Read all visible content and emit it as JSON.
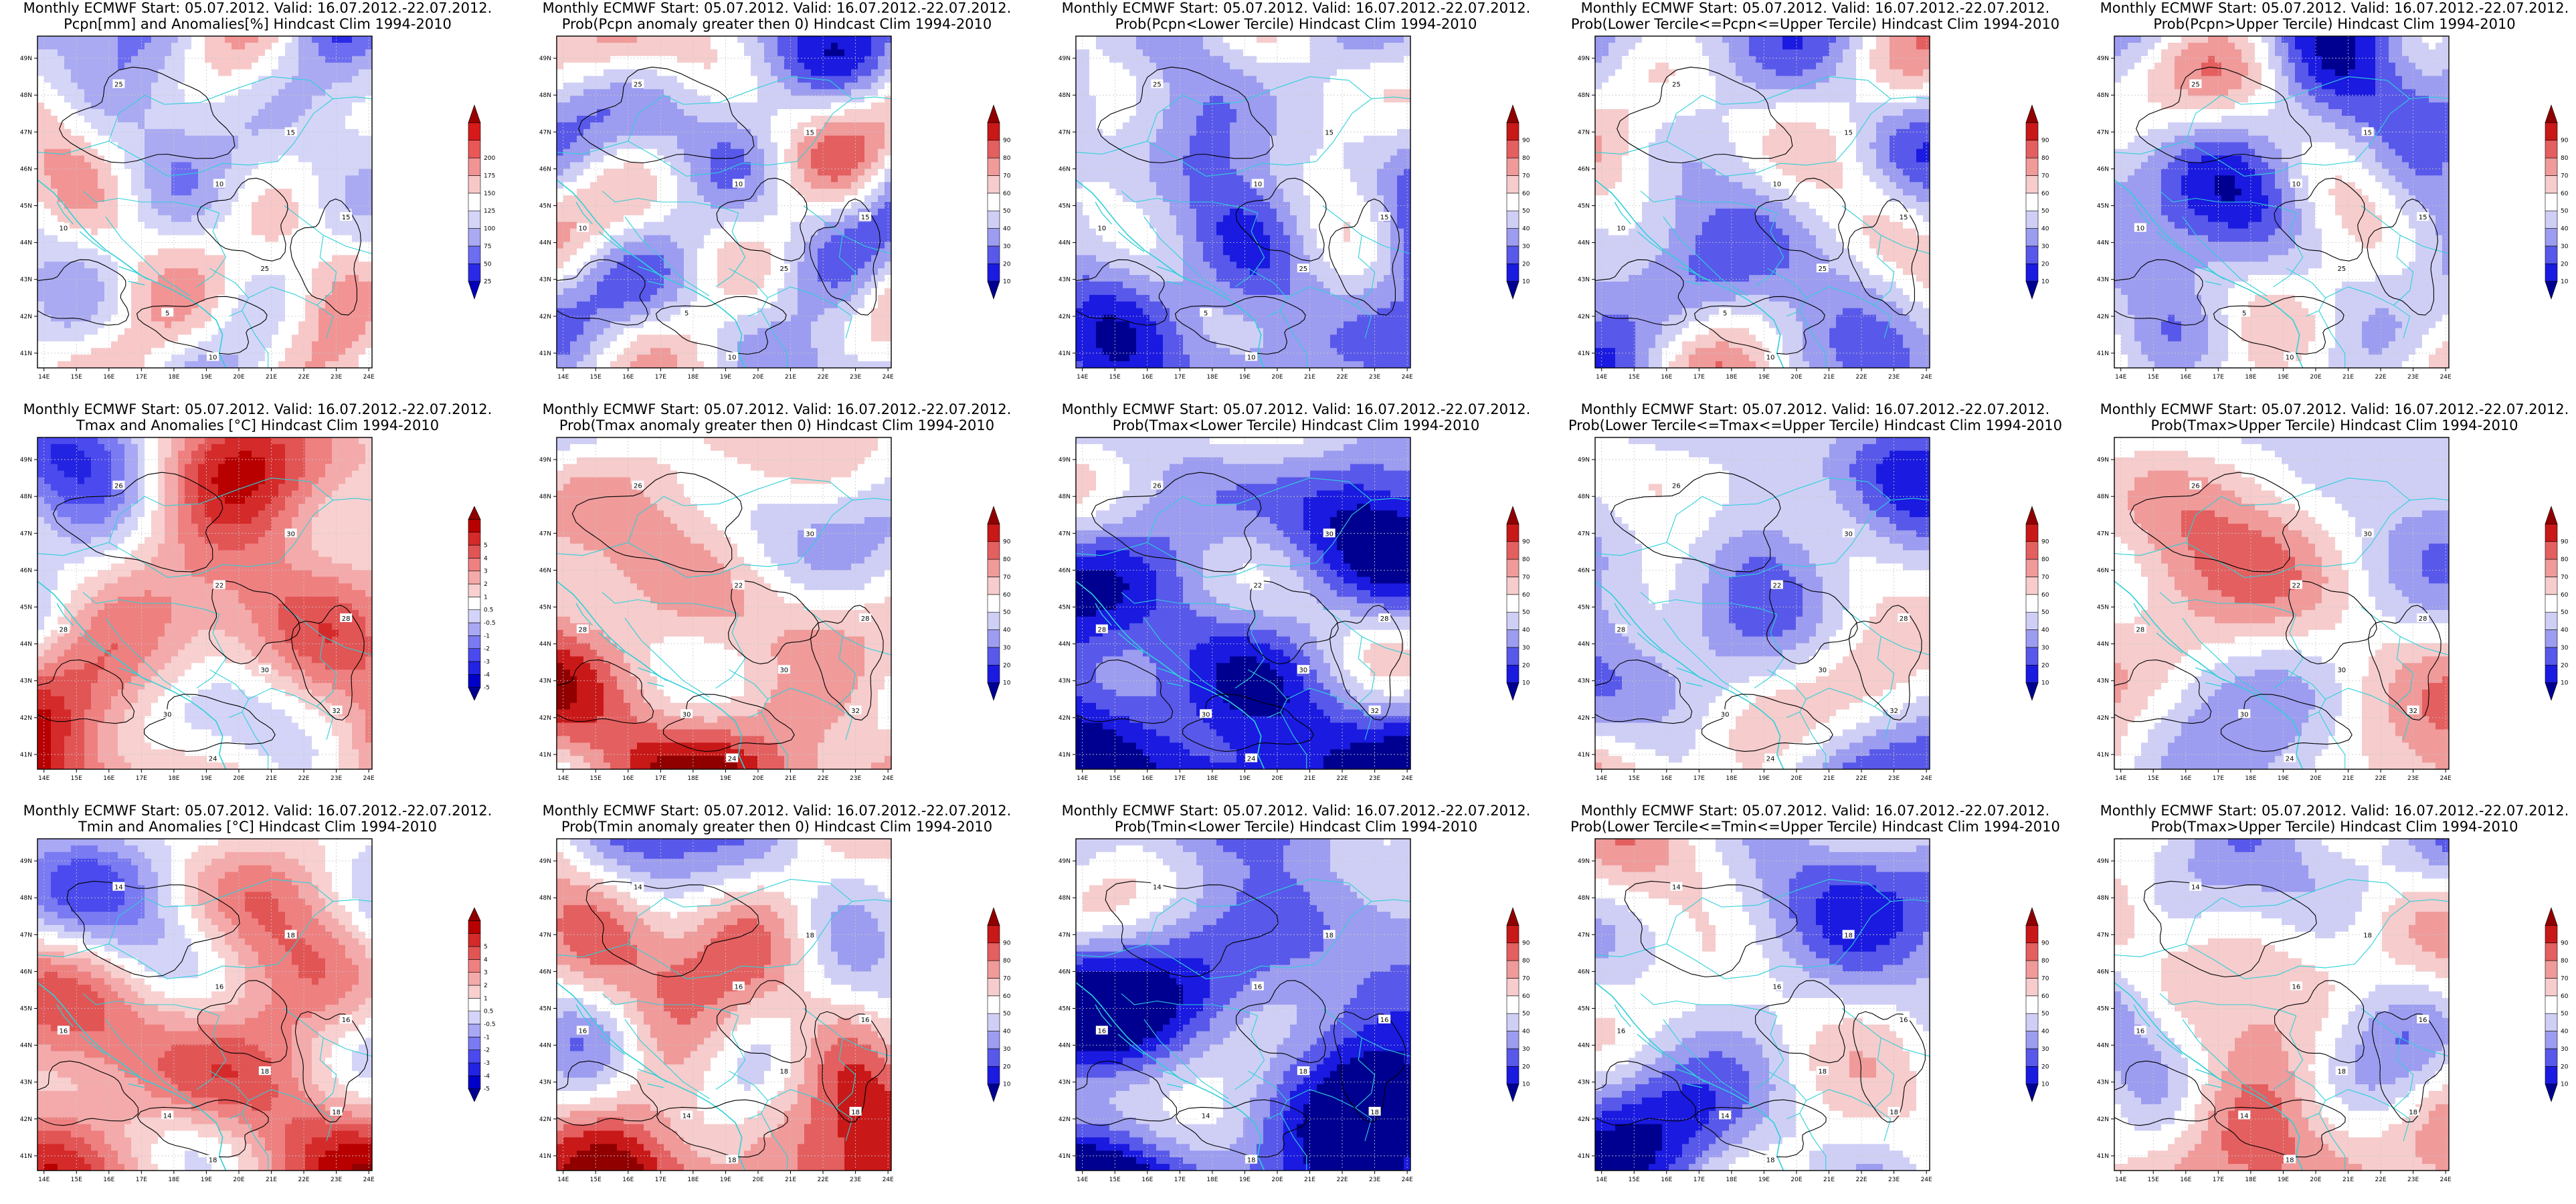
{
  "figure": {
    "rows": [
      {
        "variable": "Pcpn",
        "panels": [
          {
            "line1": "Monthly ECMWF Start: 05.07.2012. Valid: 16.07.2012.-22.07.2012.",
            "line2": "Pcpn[mm] and Anomalies[%] Hindcast Clim 1994-2010",
            "scale": "anomaly_pcpn",
            "contour_labels": [
              "25",
              "10",
              "15",
              "10",
              "25",
              "15",
              "5",
              "10"
            ]
          },
          {
            "line1": "Monthly ECMWF Start: 05.07.2012. Valid: 16.07.2012.-22.07.2012.",
            "line2": "Prob(Pcpn anomaly greater then 0) Hindcast Clim 1994-2010",
            "scale": "probability",
            "contour_labels": [
              "25",
              "10",
              "15",
              "10",
              "25",
              "15",
              "5",
              "10"
            ]
          },
          {
            "line1": "Monthly ECMWF Start: 05.07.2012. Valid: 16.07.2012.-22.07.2012.",
            "line2": "Prob(Pcpn<Lower Tercile) Hindcast Clim 1994-2010",
            "scale": "probability",
            "contour_labels": [
              "25",
              "10",
              "15",
              "10",
              "25",
              "15",
              "5",
              "10"
            ]
          },
          {
            "line1": "Monthly ECMWF Start: 05.07.2012. Valid: 16.07.2012.-22.07.2012.",
            "line2": "Prob(Lower Tercile<=Pcpn<=Upper Tercile) Hindcast Clim 1994-2010",
            "scale": "probability",
            "contour_labels": [
              "25",
              "10",
              "15",
              "10",
              "25",
              "15",
              "5",
              "10"
            ]
          },
          {
            "line1": "Monthly ECMWF Start: 05.07.2012. Valid: 16.07.2012.-22.07.2012.",
            "line2": "Prob(Pcpn>Upper Tercile) Hindcast Clim 1994-2010",
            "scale": "probability",
            "contour_labels": [
              "25",
              "10",
              "15",
              "10",
              "25",
              "15",
              "5",
              "10"
            ]
          }
        ]
      },
      {
        "variable": "Tmax",
        "panels": [
          {
            "line1": "Monthly ECMWF Start: 05.07.2012. Valid: 16.07.2012.-22.07.2012.",
            "line2": "Tmax and Anomalies [°C] Hindcast Clim 1994-2010",
            "scale": "anomaly_temp",
            "contour_labels": [
              "26",
              "22",
              "30",
              "28",
              "30",
              "28",
              "30",
              "24",
              "32"
            ]
          },
          {
            "line1": "Monthly ECMWF Start: 05.07.2012. Valid: 16.07.2012.-22.07.2012.",
            "line2": "Prob(Tmax anomaly greater then 0) Hindcast Clim 1994-2010",
            "scale": "probability",
            "contour_labels": [
              "26",
              "22",
              "30",
              "28",
              "30",
              "28",
              "30",
              "24",
              "32"
            ]
          },
          {
            "line1": "Monthly ECMWF Start: 05.07.2012. Valid: 16.07.2012.-22.07.2012.",
            "line2": "Prob(Tmax<Lower Tercile) Hindcast Clim 1994-2010",
            "scale": "probability",
            "contour_labels": [
              "26",
              "22",
              "30",
              "28",
              "30",
              "28",
              "30",
              "24",
              "32"
            ]
          },
          {
            "line1": "Monthly ECMWF Start: 05.07.2012. Valid: 16.07.2012.-22.07.2012.",
            "line2": "Prob(Lower Tercile<=Tmax<=Upper Tercile) Hindcast Clim 1994-2010",
            "scale": "probability",
            "contour_labels": [
              "26",
              "22",
              "30",
              "28",
              "30",
              "28",
              "30",
              "24",
              "32"
            ]
          },
          {
            "line1": "Monthly ECMWF Start: 05.07.2012. Valid: 16.07.2012.-22.07.2012.",
            "line2": "Prob(Tmax>Upper Tercile) Hindcast Clim 1994-2010",
            "scale": "probability",
            "contour_labels": [
              "26",
              "22",
              "30",
              "28",
              "30",
              "28",
              "30",
              "24",
              "32"
            ]
          }
        ]
      },
      {
        "variable": "Tmin",
        "panels": [
          {
            "line1": "Monthly ECMWF Start: 05.07.2012. Valid: 16.07.2012.-22.07.2012.",
            "line2": "Tmin and Anomalies [°C] Hindcast Clim 1994-2010",
            "scale": "anomaly_temp",
            "contour_labels": [
              "14",
              "16",
              "18",
              "16",
              "18",
              "16",
              "14",
              "18",
              "18"
            ]
          },
          {
            "line1": "Monthly ECMWF Start: 05.07.2012. Valid: 16.07.2012.-22.07.2012.",
            "line2": "Prob(Tmin anomaly greater then 0) Hindcast Clim 1994-2010",
            "scale": "probability",
            "contour_labels": [
              "14",
              "16",
              "18",
              "16",
              "18",
              "16",
              "14",
              "18",
              "18"
            ]
          },
          {
            "line1": "Monthly ECMWF Start: 05.07.2012. Valid: 16.07.2012.-22.07.2012.",
            "line2": "Prob(Tmin<Lower Tercile) Hindcast Clim 1994-2010",
            "scale": "probability",
            "contour_labels": [
              "14",
              "16",
              "18",
              "16",
              "18",
              "16",
              "14",
              "18",
              "18"
            ]
          },
          {
            "line1": "Monthly ECMWF Start: 05.07.2012. Valid: 16.07.2012.-22.07.2012.",
            "line2": "Prob(Lower Tercile<=Tmin<=Upper Tercile) Hindcast Clim 1994-2010",
            "scale": "probability",
            "contour_labels": [
              "14",
              "16",
              "18",
              "16",
              "18",
              "16",
              "14",
              "18",
              "18"
            ]
          },
          {
            "line1": "Monthly ECMWF Start: 05.07.2012. Valid: 16.07.2012.-22.07.2012.",
            "line2": "Prob(Tmax>Upper Tercile) Hindcast Clim 1994-2010",
            "scale": "probability",
            "contour_labels": [
              "14",
              "16",
              "18",
              "16",
              "18",
              "16",
              "14",
              "18",
              "18"
            ]
          }
        ]
      }
    ]
  },
  "axes": {
    "lat_labels": [
      "41N",
      "42N",
      "43N",
      "44N",
      "45N",
      "46N",
      "47N",
      "48N",
      "49N"
    ],
    "lon_labels": [
      "14E",
      "15E",
      "16E",
      "17E",
      "18E",
      "19E",
      "20E",
      "21E",
      "22E",
      "23E",
      "24E"
    ]
  },
  "scales": {
    "anomaly_pcpn": {
      "labels": [
        "25",
        "50",
        "75",
        "100",
        "125",
        "150",
        "175",
        "200"
      ],
      "colors": [
        "#0000b8",
        "#2a2ae6",
        "#6d6df2",
        "#aaaaf2",
        "#d5d5f8",
        "#ffffff",
        "#f8c8c8",
        "#f29494",
        "#ea5757",
        "#d61a1a",
        "#9a0000"
      ]
    },
    "anomaly_temp": {
      "labels": [
        "-5",
        "-4",
        "-3",
        "-2",
        "-1",
        "-0.5",
        "0.5",
        "1",
        "2",
        "3",
        "4",
        "5"
      ],
      "colors": [
        "#000090",
        "#0000c8",
        "#2323e2",
        "#4a4aee",
        "#7a7af2",
        "#a8a8f4",
        "#d4d4f8",
        "#ffffff",
        "#f8d0d0",
        "#f4aaaa",
        "#ee8080",
        "#e25555",
        "#d42a2a",
        "#b80000",
        "#900000"
      ]
    },
    "probability": {
      "labels": [
        "10",
        "20",
        "30",
        "40",
        "50",
        "60",
        "70",
        "80",
        "90"
      ],
      "colors": [
        "#000090",
        "#1a1ae0",
        "#5858ea",
        "#9c9cf0",
        "#cfcff6",
        "#ffffff",
        "#f6cccc",
        "#f09a9a",
        "#e45f5f",
        "#c81818",
        "#900000"
      ]
    }
  },
  "colors": {
    "coast": "#2fd0d8",
    "border": "#2fd0d8",
    "contour": "#000000",
    "grid": "#c8c8c8"
  }
}
